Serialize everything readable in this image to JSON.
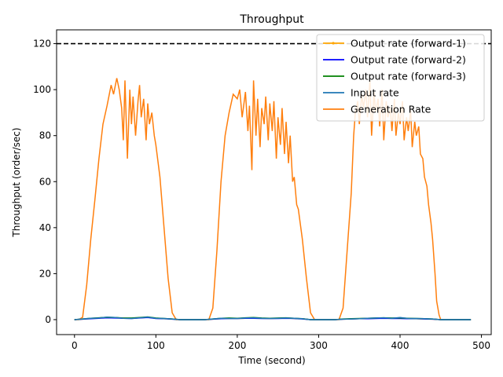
{
  "chart_data": {
    "type": "line",
    "title": "Throughput",
    "xlabel": "Time (second)",
    "ylabel": "Throughput (order/sec)",
    "xlim": [
      -22,
      512
    ],
    "ylim": [
      -6.5,
      126
    ],
    "xticks": [
      0,
      100,
      200,
      300,
      400,
      500
    ],
    "yticks": [
      0,
      20,
      40,
      60,
      80,
      100,
      120
    ],
    "grid": false,
    "legend_position": "top-right",
    "reference_line": {
      "y": 120,
      "style": "dashed",
      "color": "#000000"
    },
    "series": [
      {
        "name": "Output rate (forward-1)",
        "color": "#ffa500",
        "style": "line-marker",
        "x": [
          0,
          10,
          20,
          30,
          40,
          50,
          60,
          70,
          80,
          90,
          100,
          110,
          120,
          130,
          140,
          150,
          160,
          170,
          180,
          190,
          200,
          210,
          220,
          230,
          240,
          250,
          260,
          270,
          280,
          290,
          300,
          310,
          320,
          330,
          340,
          350,
          360,
          370,
          380,
          390,
          400,
          410,
          420,
          430,
          440,
          450,
          460,
          470,
          480,
          487
        ],
        "y": [
          0,
          0.2,
          0.5,
          0.7,
          0.9,
          0.8,
          0.7,
          0.6,
          0.8,
          1.0,
          0.6,
          0.4,
          0.3,
          0,
          0,
          0,
          0,
          0.2,
          0.5,
          0.6,
          0.5,
          0.6,
          0.7,
          0.6,
          0.5,
          0.6,
          0.7,
          0.5,
          0.4,
          0,
          0,
          0,
          0,
          0.2,
          0.3,
          0.4,
          0.5,
          0.6,
          0.7,
          0.6,
          0.6,
          0.5,
          0.4,
          0.3,
          0.2,
          0,
          0,
          0,
          0,
          0
        ]
      },
      {
        "name": "Output rate (forward-2)",
        "color": "#0000ff",
        "style": "line",
        "x": [
          0,
          10,
          20,
          30,
          40,
          50,
          60,
          70,
          80,
          90,
          100,
          110,
          120,
          130,
          140,
          150,
          160,
          170,
          180,
          190,
          200,
          210,
          220,
          230,
          240,
          250,
          260,
          270,
          280,
          290,
          300,
          310,
          320,
          330,
          340,
          350,
          360,
          370,
          380,
          390,
          400,
          410,
          420,
          430,
          440,
          450,
          460,
          470,
          480,
          487
        ],
        "y": [
          0,
          0.2,
          0.4,
          0.6,
          0.8,
          0.7,
          0.6,
          0.5,
          0.7,
          0.9,
          0.5,
          0.4,
          0.2,
          0,
          0,
          0,
          0,
          0.2,
          0.4,
          0.5,
          0.5,
          0.6,
          0.6,
          0.5,
          0.5,
          0.5,
          0.6,
          0.5,
          0.3,
          0,
          0,
          0,
          0,
          0.2,
          0.3,
          0.4,
          0.4,
          0.5,
          0.6,
          0.5,
          0.5,
          0.4,
          0.4,
          0.3,
          0.2,
          0,
          0,
          0,
          0,
          0
        ]
      },
      {
        "name": "Output rate (forward-3)",
        "color": "#008000",
        "style": "line",
        "x": [
          0,
          10,
          20,
          30,
          40,
          50,
          60,
          70,
          80,
          90,
          100,
          110,
          120,
          130,
          140,
          150,
          160,
          170,
          180,
          190,
          200,
          210,
          220,
          230,
          240,
          250,
          260,
          270,
          280,
          290,
          300,
          310,
          320,
          330,
          340,
          350,
          360,
          370,
          380,
          390,
          400,
          410,
          420,
          430,
          440,
          450,
          460,
          470,
          480,
          487
        ],
        "y": [
          0,
          0.3,
          0.6,
          0.8,
          1.0,
          0.9,
          0.7,
          0.7,
          0.9,
          1.2,
          0.7,
          0.5,
          0.3,
          0,
          0,
          0,
          0,
          0.3,
          0.6,
          0.7,
          0.6,
          0.8,
          0.9,
          0.7,
          0.6,
          0.7,
          0.8,
          0.6,
          0.4,
          0,
          0,
          0,
          0,
          0.3,
          0.4,
          0.5,
          0.6,
          0.7,
          0.8,
          0.7,
          0.7,
          0.6,
          0.5,
          0.4,
          0.3,
          0,
          0,
          0,
          0,
          0
        ]
      },
      {
        "name": "Input rate",
        "color": "#1f77b4",
        "style": "line",
        "x": [
          0,
          10,
          20,
          30,
          40,
          50,
          60,
          70,
          80,
          90,
          100,
          110,
          120,
          130,
          140,
          150,
          160,
          170,
          180,
          190,
          200,
          210,
          220,
          230,
          240,
          250,
          260,
          270,
          280,
          290,
          300,
          310,
          320,
          330,
          340,
          350,
          360,
          370,
          380,
          390,
          400,
          410,
          420,
          430,
          440,
          450,
          460,
          470,
          480,
          487
        ],
        "y": [
          0,
          0.3,
          0.6,
          0.7,
          1.1,
          0.9,
          0.6,
          0.5,
          0.8,
          1.1,
          0.6,
          0.5,
          0.3,
          0,
          0,
          0,
          0,
          0.3,
          0.6,
          0.5,
          0.5,
          0.7,
          0.8,
          0.6,
          0.5,
          0.6,
          0.7,
          0.6,
          0.4,
          0,
          0,
          0,
          0,
          0.2,
          0.3,
          0.4,
          0.6,
          0.7,
          0.8,
          0.6,
          0.9,
          0.5,
          0.5,
          0.4,
          0.3,
          0,
          0,
          0,
          0,
          0
        ]
      },
      {
        "name": "Generation Rate",
        "color": "#ff7f0e",
        "style": "line",
        "x": [
          0,
          5,
          10,
          15,
          20,
          25,
          30,
          35,
          40,
          45,
          48,
          52,
          55,
          58,
          60,
          62,
          65,
          68,
          70,
          72,
          75,
          78,
          80,
          82,
          85,
          88,
          90,
          92,
          95,
          98,
          100,
          105,
          110,
          115,
          120,
          125,
          130,
          140,
          150,
          160,
          165,
          170,
          175,
          180,
          185,
          190,
          195,
          200,
          203,
          206,
          210,
          213,
          215,
          218,
          220,
          223,
          225,
          228,
          230,
          233,
          235,
          238,
          240,
          243,
          245,
          248,
          250,
          253,
          255,
          258,
          260,
          263,
          265,
          268,
          270,
          273,
          275,
          280,
          285,
          290,
          295,
          300,
          310,
          320,
          325,
          330,
          335,
          340,
          343,
          345,
          348,
          350,
          353,
          355,
          358,
          360,
          363,
          365,
          368,
          370,
          373,
          375,
          378,
          380,
          383,
          385,
          388,
          390,
          393,
          395,
          398,
          400,
          403,
          405,
          408,
          410,
          413,
          415,
          418,
          420,
          423,
          425,
          428,
          430,
          433,
          435,
          438,
          440,
          443,
          445,
          448,
          450,
          460,
          470,
          480,
          487
        ],
        "y": [
          0,
          0,
          1,
          15,
          35,
          52,
          70,
          85,
          93,
          102,
          98,
          105,
          100,
          92,
          78,
          104,
          70,
          100,
          85,
          97,
          80,
          95,
          102,
          88,
          96,
          78,
          94,
          85,
          90,
          80,
          76,
          62,
          40,
          18,
          3,
          0,
          0,
          0,
          0,
          0,
          0,
          5,
          30,
          60,
          80,
          90,
          98,
          96,
          100,
          88,
          99,
          82,
          93,
          65,
          104,
          80,
          96,
          75,
          92,
          85,
          97,
          78,
          94,
          82,
          95,
          70,
          88,
          76,
          92,
          72,
          86,
          68,
          80,
          60,
          62,
          50,
          48,
          35,
          18,
          3,
          0,
          0,
          0,
          0,
          0,
          5,
          30,
          55,
          80,
          90,
          95,
          85,
          98,
          92,
          100,
          88,
          104,
          80,
          99,
          90,
          96,
          84,
          100,
          78,
          95,
          88,
          92,
          82,
          96,
          80,
          90,
          85,
          95,
          78,
          88,
          82,
          91,
          75,
          86,
          80,
          84,
          72,
          70,
          62,
          58,
          50,
          42,
          35,
          20,
          8,
          2,
          0,
          0,
          0,
          0,
          0
        ]
      }
    ]
  }
}
